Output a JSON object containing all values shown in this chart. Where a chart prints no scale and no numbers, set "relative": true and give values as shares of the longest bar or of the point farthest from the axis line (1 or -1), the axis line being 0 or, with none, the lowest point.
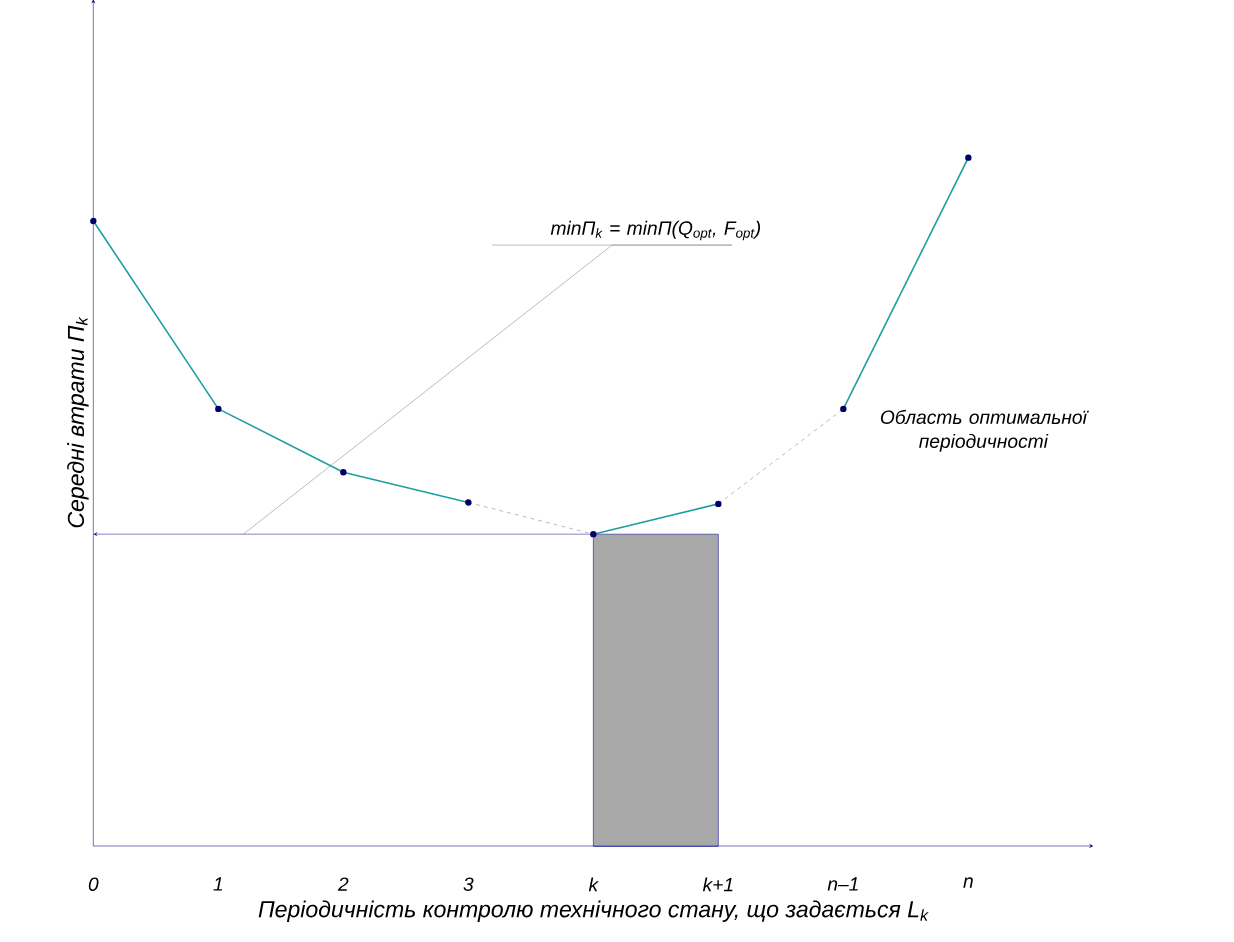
{
  "chart_data": {
    "type": "line",
    "relative": true,
    "xlabel": "Періодичність контролю технічного стану, що задається L$_{k}$",
    "ylabel": "Середні втрати П$_{k}$",
    "x": [
      0,
      1,
      2,
      3,
      4,
      5,
      6,
      7
    ],
    "xlim": [
      0,
      8
    ],
    "xticks": [
      {
        "value": 0,
        "label": "0"
      },
      {
        "value": 1,
        "label": "1"
      },
      {
        "value": 2,
        "label": "2"
      },
      {
        "value": 3,
        "label": "3"
      },
      {
        "value": 4,
        "label": "k"
      },
      {
        "value": 5,
        "label": "k+1"
      },
      {
        "value": 6,
        "label": "n–1"
      },
      {
        "value": 7,
        "label": "n"
      }
    ],
    "tick_labels": "x",
    "series": [
      {
        "color": "#1f9e9e",
        "marker": "circle",
        "line_style": "solid",
        "values": [
          0.908,
          0.635,
          0.543,
          0.499,
          null,
          null,
          null,
          null
        ]
      },
      {
        "color": "#808080",
        "marker": "none",
        "line_style": "dashed",
        "values": [
          null,
          null,
          null,
          0.499,
          0.453,
          null,
          null,
          null
        ]
      },
      {
        "color": "#1f9e9e",
        "marker": "circle",
        "line_style": "solid",
        "values": [
          null,
          null,
          null,
          null,
          0.453,
          0.497,
          null,
          null
        ]
      },
      {
        "color": "#808080",
        "marker": "none",
        "line_style": "dashed",
        "values": [
          null,
          null,
          null,
          null,
          null,
          0.497,
          0.635,
          null
        ]
      },
      {
        "color": "#1f9e9e",
        "marker": "circle",
        "line_style": "solid",
        "values": [
          null,
          null,
          null,
          null,
          null,
          null,
          0.635,
          1.0
        ]
      }
    ],
    "ref_lines": [
      {
        "axis": "y",
        "value": 0.453,
        "color": "#1a1a8c"
      }
    ],
    "bands": [
      {
        "axis": "x",
        "from": 4,
        "to": 5,
        "color": "#a8a8a8"
      }
    ],
    "annotations": [
      {
        "text": "minП$_{k}$ = minП(Q$_{opt}$, F$_{opt}$)",
        "x": 1.2,
        "y": 0.453
      },
      "Область оптимальної періодичності"
    ]
  }
}
